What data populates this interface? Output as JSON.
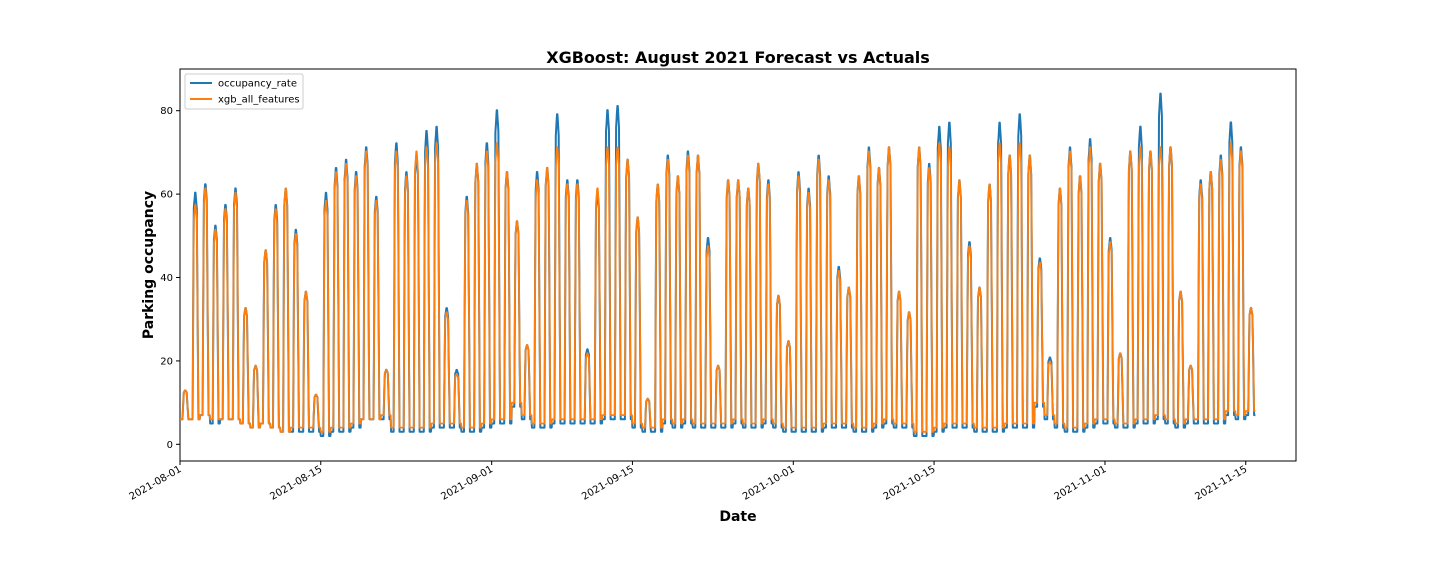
{
  "chart_data": {
    "type": "line",
    "title": "XGBoost: August 2021 Forecast vs Actuals",
    "xlabel": "Date",
    "ylabel": "Parking occupancy",
    "x_start": "2021-08-01",
    "x_end": "2021-11-20",
    "ylim": [
      -4,
      90
    ],
    "x_ticks": [
      "2021-08-01",
      "2021-08-15",
      "2021-09-01",
      "2021-09-15",
      "2021-10-01",
      "2021-10-15",
      "2021-11-01",
      "2021-11-15"
    ],
    "y_ticks": [
      0,
      20,
      40,
      60,
      80
    ],
    "grid": false,
    "legend": "top-left",
    "series": [
      {
        "name": "occupancy_rate",
        "color": "#1f77b4",
        "daily_peaks": [
          13,
          61,
          63,
          53,
          58,
          62,
          33,
          19,
          47,
          58,
          62,
          52,
          37,
          12,
          61,
          67,
          69,
          66,
          72,
          60,
          18,
          73,
          66,
          70,
          76,
          77,
          33,
          18,
          60,
          68,
          73,
          81,
          66,
          54,
          24,
          66,
          67,
          80,
          64,
          64,
          23,
          61,
          81,
          82,
          69,
          55,
          11,
          63,
          70,
          65,
          71,
          70,
          50,
          19,
          64,
          64,
          62,
          68,
          64,
          36,
          25,
          66,
          62,
          70,
          65,
          43,
          38,
          65,
          72,
          67,
          72,
          37,
          32,
          72,
          68,
          77,
          78,
          64,
          49,
          38,
          63,
          78,
          70,
          80,
          70,
          45,
          21,
          62,
          72,
          65,
          74,
          68,
          50,
          22,
          71,
          77,
          71,
          85,
          72,
          37,
          19,
          64,
          66,
          70,
          78,
          72,
          33
        ],
        "daily_lows": [
          6,
          6,
          7,
          5,
          6,
          6,
          5,
          4,
          5,
          4,
          3,
          3,
          3,
          3,
          2,
          3,
          3,
          4,
          6,
          6,
          6,
          3,
          3,
          3,
          3,
          4,
          4,
          4,
          3,
          3,
          4,
          5,
          5,
          9,
          6,
          4,
          4,
          5,
          5,
          5,
          5,
          5,
          6,
          6,
          6,
          4,
          3,
          3,
          5,
          4,
          5,
          4,
          4,
          4,
          4,
          5,
          4,
          4,
          5,
          4,
          3,
          3,
          3,
          3,
          4,
          4,
          4,
          3,
          3,
          4,
          5,
          4,
          4,
          2,
          2,
          3,
          4,
          4,
          4,
          3,
          3,
          3,
          4,
          4,
          4,
          9,
          6,
          4,
          3,
          3,
          4,
          5,
          5,
          4,
          4,
          5,
          5,
          6,
          5,
          4,
          5,
          5,
          5,
          5,
          7,
          6,
          7
        ]
      },
      {
        "name": "xgb_all_features",
        "color": "#ff7f0e",
        "daily_peaks": [
          13,
          58,
          62,
          52,
          57,
          61,
          33,
          19,
          47,
          57,
          62,
          51,
          37,
          12,
          59,
          66,
          68,
          65,
          71,
          59,
          18,
          71,
          65,
          71,
          72,
          73,
          32,
          17,
          59,
          68,
          71,
          73,
          66,
          54,
          24,
          64,
          67,
          72,
          63,
          63,
          22,
          62,
          72,
          72,
          69,
          55,
          11,
          63,
          69,
          65,
          70,
          70,
          48,
          19,
          64,
          64,
          62,
          68,
          63,
          36,
          25,
          65,
          61,
          69,
          64,
          42,
          38,
          65,
          71,
          67,
          72,
          37,
          32,
          72,
          67,
          73,
          72,
          64,
          48,
          38,
          63,
          73,
          70,
          73,
          70,
          44,
          20,
          62,
          71,
          65,
          72,
          68,
          49,
          22,
          71,
          72,
          71,
          72,
          72,
          37,
          19,
          63,
          66,
          69,
          73,
          71,
          33
        ],
        "daily_lows": [
          6,
          6,
          7,
          6,
          6,
          6,
          5,
          4,
          5,
          4,
          3,
          4,
          4,
          4,
          3,
          4,
          4,
          5,
          6,
          6,
          7,
          4,
          4,
          4,
          4,
          5,
          5,
          5,
          4,
          4,
          5,
          6,
          6,
          10,
          7,
          5,
          5,
          6,
          6,
          6,
          6,
          6,
          7,
          7,
          7,
          5,
          4,
          4,
          6,
          5,
          6,
          5,
          5,
          5,
          5,
          6,
          5,
          5,
          6,
          5,
          4,
          4,
          4,
          4,
          5,
          5,
          5,
          4,
          4,
          5,
          6,
          5,
          5,
          3,
          3,
          4,
          5,
          5,
          5,
          4,
          4,
          4,
          5,
          5,
          5,
          10,
          7,
          5,
          4,
          4,
          5,
          6,
          6,
          5,
          5,
          6,
          6,
          7,
          6,
          5,
          6,
          6,
          6,
          6,
          8,
          7,
          8
        ]
      }
    ]
  }
}
